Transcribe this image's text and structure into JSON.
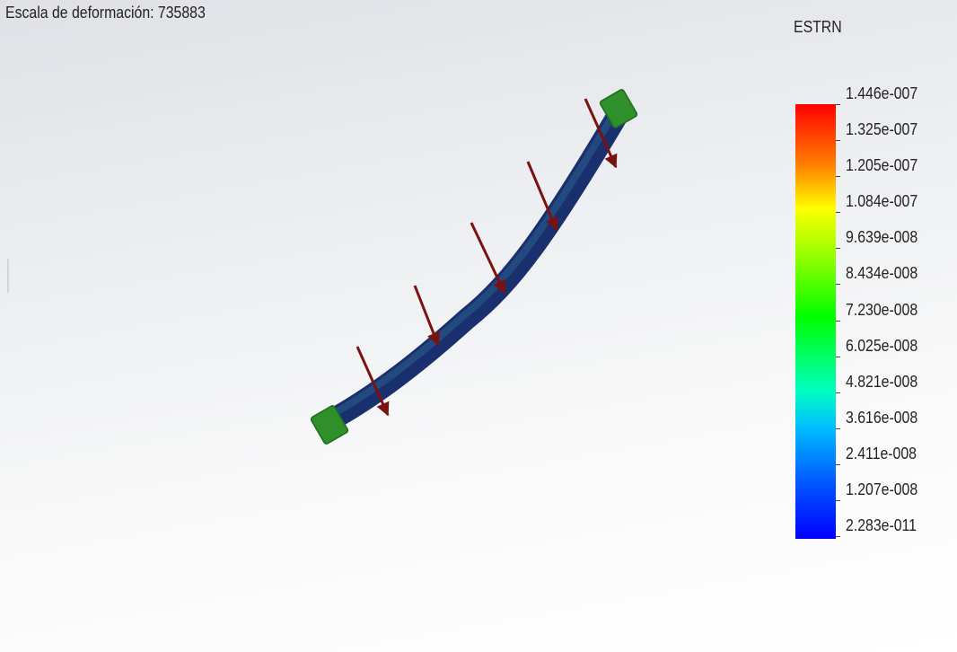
{
  "header": {
    "title": "Escala de deformación: 735883"
  },
  "legend": {
    "title": "ESTRN",
    "labels": [
      "1.446e-007",
      "1.325e-007",
      "1.205e-007",
      "1.084e-007",
      "9.639e-008",
      "8.434e-008",
      "7.230e-008",
      "6.025e-008",
      "4.821e-008",
      "3.616e-008",
      "2.411e-008",
      "1.207e-008",
      "2.283e-011"
    ]
  }
}
